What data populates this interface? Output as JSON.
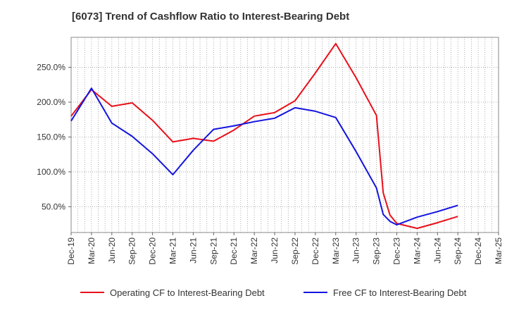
{
  "chart_data": {
    "type": "line",
    "title": "[6073]  Trend of Cashflow Ratio to Interest-Bearing Debt",
    "xlabel": "",
    "ylabel": "",
    "x_ticks": [
      "Dec-19",
      "Mar-20",
      "Jun-20",
      "Sep-20",
      "Dec-20",
      "Mar-21",
      "Jun-21",
      "Sep-21",
      "Dec-21",
      "Mar-22",
      "Jun-22",
      "Sep-22",
      "Dec-22",
      "Mar-23",
      "Jun-23",
      "Sep-23",
      "Dec-23",
      "Mar-24",
      "Jun-24",
      "Sep-24",
      "Dec-24",
      "Mar-25"
    ],
    "y_ticks": [
      50,
      100,
      150,
      200,
      250
    ],
    "y_tick_labels": [
      "50.0%",
      "100.0%",
      "150.0%",
      "200.0%",
      "250.0%"
    ],
    "ylim": [
      13,
      293
    ],
    "grid": true,
    "legend_position": "bottom",
    "series": [
      {
        "name": "Operating CF to Interest-Bearing Debt",
        "color": "#e8101a",
        "points": [
          [
            "Dec-19",
            180
          ],
          [
            "Mar-20",
            218
          ],
          [
            "Jun-20",
            194
          ],
          [
            "Sep-20",
            199
          ],
          [
            "Dec-20",
            174
          ],
          [
            "Mar-21",
            143
          ],
          [
            "Jun-21",
            148
          ],
          [
            "Sep-21",
            144
          ],
          [
            "Dec-21",
            160
          ],
          [
            "Mar-22",
            180
          ],
          [
            "Jun-22",
            185
          ],
          [
            "Sep-22",
            202
          ],
          [
            "Dec-22",
            242
          ],
          [
            "Mar-23",
            284
          ],
          [
            "Jun-23",
            235
          ],
          [
            "Sep-23",
            181
          ],
          [
            "Oct-23",
            70
          ],
          [
            "Nov-23",
            38
          ],
          [
            "Dec-23",
            26
          ],
          [
            "Mar-24",
            19
          ],
          [
            "Jun-24",
            27
          ],
          [
            "Sep-24",
            36
          ]
        ]
      },
      {
        "name": "Free CF to Interest-Bearing Debt",
        "color": "#1414e0",
        "points": [
          [
            "Dec-19",
            173
          ],
          [
            "Mar-20",
            220
          ],
          [
            "Jun-20",
            170
          ],
          [
            "Sep-20",
            151
          ],
          [
            "Dec-20",
            126
          ],
          [
            "Mar-21",
            96
          ],
          [
            "Jun-21",
            131
          ],
          [
            "Sep-21",
            161
          ],
          [
            "Dec-21",
            166
          ],
          [
            "Mar-22",
            172
          ],
          [
            "Jun-22",
            177
          ],
          [
            "Sep-22",
            192
          ],
          [
            "Dec-22",
            187
          ],
          [
            "Mar-23",
            178
          ],
          [
            "Jun-23",
            129
          ],
          [
            "Sep-23",
            77
          ],
          [
            "Oct-23",
            39
          ],
          [
            "Nov-23",
            29
          ],
          [
            "Dec-23",
            24
          ],
          [
            "Mar-24",
            35
          ],
          [
            "Jun-24",
            43
          ],
          [
            "Sep-24",
            52
          ]
        ]
      }
    ]
  }
}
